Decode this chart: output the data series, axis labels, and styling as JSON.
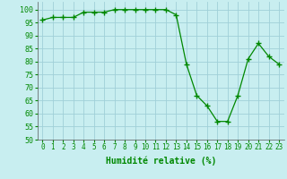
{
  "x": [
    0,
    1,
    2,
    3,
    4,
    5,
    6,
    7,
    8,
    9,
    10,
    11,
    12,
    13,
    14,
    15,
    16,
    17,
    18,
    19,
    20,
    21,
    22,
    23
  ],
  "y": [
    96,
    97,
    97,
    97,
    99,
    99,
    99,
    100,
    100,
    100,
    100,
    100,
    100,
    98,
    79,
    67,
    63,
    57,
    57,
    67,
    81,
    87,
    82,
    79
  ],
  "line_color": "#008800",
  "marker": "+",
  "marker_size": 4,
  "bg_color": "#c8eef0",
  "grid_color": "#a0d0d8",
  "xlabel": "Humidité relative (%)",
  "xlabel_color": "#008800",
  "tick_color": "#008800",
  "ylim": [
    50,
    103
  ],
  "xlim": [
    -0.5,
    23.5
  ],
  "yticks": [
    50,
    55,
    60,
    65,
    70,
    75,
    80,
    85,
    90,
    95,
    100
  ],
  "xticks": [
    0,
    1,
    2,
    3,
    4,
    5,
    6,
    7,
    8,
    9,
    10,
    11,
    12,
    13,
    14,
    15,
    16,
    17,
    18,
    19,
    20,
    21,
    22,
    23
  ],
  "xlabel_fontsize": 7,
  "tick_fontsize": 5.5,
  "ytick_fontsize": 6
}
